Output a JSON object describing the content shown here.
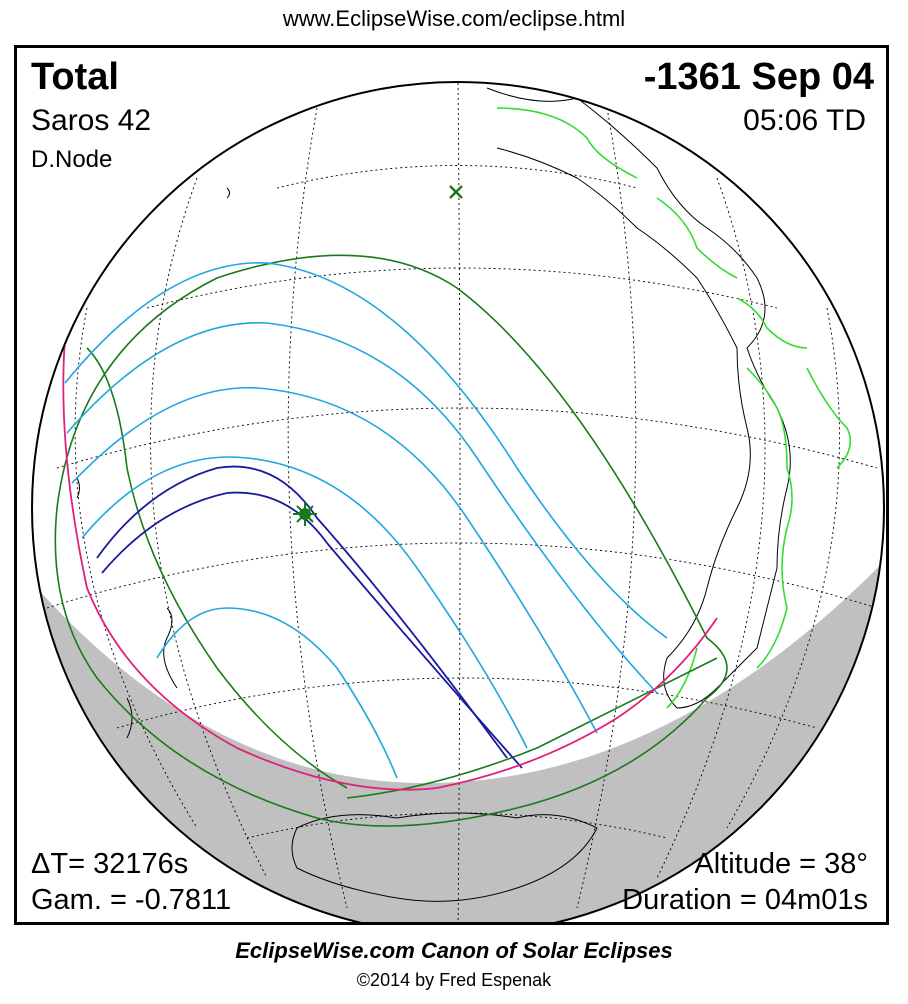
{
  "header": {
    "url": "www.EclipseWise.com/eclipse.html"
  },
  "eclipse": {
    "type": "Total",
    "date": "-1361 Sep 04",
    "saros": "Saros  42",
    "time": "05:06 TD",
    "node": "D.Node",
    "delta_t": "ΔT=  32176s",
    "gamma": "Gam. = -0.7811",
    "altitude": "Altitude = 38°",
    "duration": "Duration = 04m01s"
  },
  "footer": {
    "canon": "EclipseWise.com Canon of Solar Eclipses",
    "copyright": "©2014 by Fred Espenak"
  },
  "colors": {
    "penumbral_limits": "#1a7a1a",
    "partial_contours": "#1ea6e0",
    "central_path": "#1a1a9e",
    "rise_set_curve": "#e0207a",
    "land_borders": "#33dd33",
    "night_side": "#c0c0c0",
    "greatest_eclipse_marker": "#1a7a1a",
    "subsolar_marker": "#1a7a1a"
  },
  "markers": {
    "greatest_eclipse": "star-marker",
    "subsolar_point": "x-marker"
  }
}
